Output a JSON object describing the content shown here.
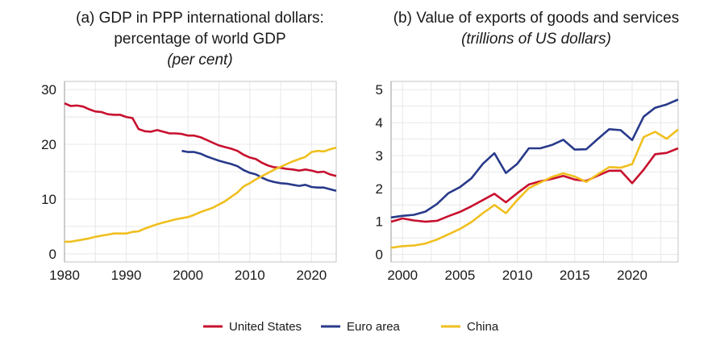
{
  "colors": {
    "United States": "#c8102e",
    "Euro area": "#283a8a",
    "China": "#f0bf1e",
    "grid": "#e8e8e8",
    "frame": "#9a9a9a"
  },
  "legend": {
    "position": "bottom",
    "items": [
      "United States",
      "Euro area",
      "China"
    ]
  },
  "chart_data": [
    {
      "type": "line",
      "title": [
        "(a) GDP in PPP international dollars:",
        "percentage of world GDP"
      ],
      "subtitle": "(per cent)",
      "xlim": [
        1980,
        2024
      ],
      "ylim": [
        -1.5,
        31.5
      ],
      "xticks": [
        1980,
        1990,
        2000,
        2010,
        2020
      ],
      "yticks": [
        0,
        10,
        20,
        30
      ],
      "grid": true,
      "series": [
        {
          "name": "United States",
          "x_start": 1980,
          "values": [
            27.5,
            27.0,
            27.1,
            26.9,
            26.4,
            26.0,
            25.9,
            25.5,
            25.4,
            25.4,
            25.0,
            24.8,
            22.8,
            22.4,
            22.3,
            22.6,
            22.3,
            22.0,
            22.0,
            21.9,
            21.6,
            21.6,
            21.3,
            20.8,
            20.3,
            19.8,
            19.5,
            19.2,
            18.8,
            18.1,
            17.6,
            17.3,
            16.6,
            16.1,
            15.8,
            15.7,
            15.5,
            15.4,
            15.2,
            15.4,
            15.2,
            14.9,
            15.0,
            14.5,
            14.2
          ]
        },
        {
          "name": "Euro area",
          "x_start": 1999,
          "values": [
            18.8,
            18.6,
            18.6,
            18.3,
            17.8,
            17.4,
            17.0,
            16.7,
            16.4,
            16.0,
            15.3,
            14.8,
            14.5,
            13.9,
            13.4,
            13.1,
            12.9,
            12.8,
            12.6,
            12.4,
            12.6,
            12.2,
            12.1,
            12.1,
            11.8,
            11.5
          ]
        },
        {
          "name": "China",
          "x_start": 1980,
          "values": [
            2.2,
            2.2,
            2.4,
            2.6,
            2.8,
            3.1,
            3.3,
            3.5,
            3.7,
            3.7,
            3.7,
            4.0,
            4.1,
            4.6,
            5.0,
            5.4,
            5.7,
            6.0,
            6.3,
            6.5,
            6.7,
            7.1,
            7.6,
            8.0,
            8.4,
            9.0,
            9.6,
            10.4,
            11.2,
            12.3,
            12.9,
            13.6,
            14.2,
            14.8,
            15.4,
            15.9,
            16.4,
            16.9,
            17.3,
            17.7,
            18.6,
            18.8,
            18.7,
            19.1,
            19.4
          ]
        }
      ]
    },
    {
      "type": "line",
      "title": [
        "(b) Value of exports of goods and services"
      ],
      "subtitle": "(trillions of US dollars)",
      "xlim": [
        1999,
        2024
      ],
      "ylim": [
        -0.23,
        5.25
      ],
      "xticks": [
        2000,
        2005,
        2010,
        2015,
        2020
      ],
      "yticks": [
        0,
        1,
        2,
        3,
        4,
        5
      ],
      "grid": true,
      "series": [
        {
          "name": "United States",
          "x_start": 1999,
          "values": [
            0.99,
            1.09,
            1.03,
            0.99,
            1.02,
            1.16,
            1.29,
            1.46,
            1.65,
            1.84,
            1.58,
            1.86,
            2.12,
            2.22,
            2.29,
            2.38,
            2.27,
            2.23,
            2.39,
            2.54,
            2.54,
            2.16,
            2.57,
            3.04,
            3.08,
            3.22
          ]
        },
        {
          "name": "Euro area",
          "x_start": 1999,
          "values": [
            1.12,
            1.17,
            1.2,
            1.3,
            1.53,
            1.86,
            2.04,
            2.31,
            2.75,
            3.07,
            2.47,
            2.75,
            3.22,
            3.22,
            3.32,
            3.48,
            3.18,
            3.19,
            3.5,
            3.8,
            3.77,
            3.47,
            4.18,
            4.45,
            4.55,
            4.7
          ]
        },
        {
          "name": "China",
          "x_start": 1999,
          "values": [
            0.2,
            0.25,
            0.27,
            0.33,
            0.45,
            0.61,
            0.77,
            0.98,
            1.25,
            1.5,
            1.25,
            1.65,
            2.01,
            2.18,
            2.35,
            2.46,
            2.36,
            2.2,
            2.43,
            2.65,
            2.63,
            2.74,
            3.56,
            3.72,
            3.51,
            3.79
          ]
        }
      ]
    }
  ]
}
